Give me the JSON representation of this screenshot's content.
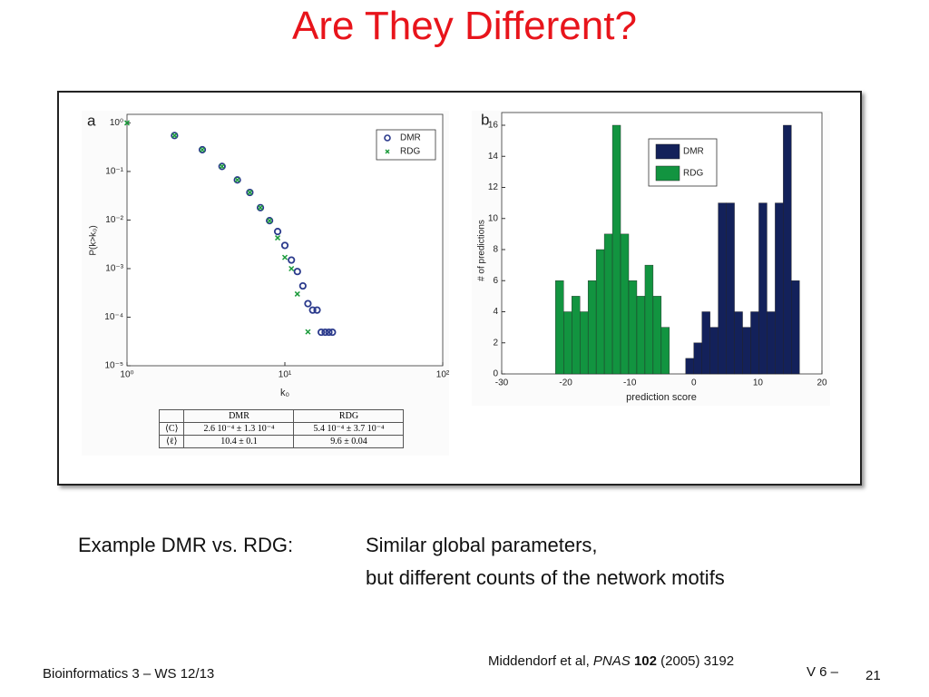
{
  "header": {
    "title": "Are They Different?"
  },
  "chart_data": [
    {
      "type": "scatter",
      "panel": "a",
      "x_label": "k₀",
      "y_label": "P(k>k₀)",
      "log_x": true,
      "log_y": true,
      "xlim": [
        1,
        100
      ],
      "ylim": [
        1e-05,
        1.5
      ],
      "xticks": [
        {
          "value": 1,
          "label": "10⁰"
        },
        {
          "value": 10,
          "label": "10¹"
        },
        {
          "value": 100,
          "label": "10²"
        }
      ],
      "yticks": [
        {
          "value": 1e-05,
          "label": "10⁻⁵"
        },
        {
          "value": 0.0001,
          "label": "10⁻⁴"
        },
        {
          "value": 0.001,
          "label": "10⁻³"
        },
        {
          "value": 0.01,
          "label": "10⁻²"
        },
        {
          "value": 0.1,
          "label": "10⁻¹"
        },
        {
          "value": 1,
          "label": "10⁰"
        }
      ],
      "legend": "upper right",
      "series": [
        {
          "name": "DMR",
          "color": "#2b3a8c",
          "marker": "circle",
          "x": [
            2,
            3,
            4,
            5,
            6,
            7,
            8,
            9,
            10,
            11,
            12,
            13,
            14,
            15,
            16,
            17,
            18,
            19,
            20
          ],
          "values": [
            0.55,
            0.28,
            0.127,
            0.067,
            0.037,
            0.018,
            0.0097,
            0.0058,
            0.003,
            0.0015,
            0.00087,
            0.00044,
            0.00019,
            0.00014,
            0.00014,
            4.9e-05,
            4.9e-05,
            4.9e-05,
            4.9e-05
          ]
        },
        {
          "name": "RDG",
          "color": "#1a9a3a",
          "marker": "x",
          "x": [
            1,
            2,
            3,
            4,
            5,
            6,
            7,
            8,
            9,
            10,
            11,
            12,
            14
          ],
          "values": [
            1,
            0.55,
            0.28,
            0.127,
            0.067,
            0.037,
            0.018,
            0.0097,
            0.0043,
            0.0017,
            0.001,
            0.0003,
            5e-05
          ]
        }
      ]
    },
    {
      "type": "histogram",
      "panel": "b",
      "x_label": "prediction score",
      "y_label": "# of predictions",
      "xlim": [
        -30,
        20
      ],
      "ylim": [
        0,
        16
      ],
      "xticks": [
        -30,
        -20,
        -10,
        0,
        10,
        20
      ],
      "yticks": [
        0,
        2,
        4,
        6,
        8,
        10,
        12,
        14,
        16
      ],
      "legend": "upper right",
      "bins": [
        -21.6,
        -20.33,
        -19.06,
        -17.79,
        -16.52,
        -15.25,
        -13.98,
        -12.71,
        -11.44,
        -10.17,
        -8.9,
        -7.63,
        -6.36,
        -5.09,
        -3.82,
        -2.55,
        -1.28,
        -0.01,
        1.26,
        2.53,
        3.8,
        5.07,
        6.34,
        7.61,
        8.88,
        10.15,
        11.42,
        12.69,
        13.96,
        15.23,
        16.5
      ],
      "series": [
        {
          "name": "DMR",
          "color": "#13215a",
          "values": [
            0,
            0,
            0,
            0,
            0,
            0,
            0,
            0,
            0,
            0,
            0,
            0,
            0,
            0,
            0,
            0,
            1,
            2,
            4,
            3,
            11,
            11,
            4,
            3,
            4,
            11,
            4,
            11,
            16,
            6
          ]
        },
        {
          "name": "RDG",
          "color": "#129440",
          "values": [
            6,
            4,
            5,
            4,
            6,
            8,
            9,
            16,
            9,
            6,
            5,
            7,
            5,
            3,
            0,
            0,
            0,
            0,
            0,
            0,
            0,
            0,
            0,
            0,
            0,
            0,
            0,
            0,
            0,
            0
          ]
        }
      ]
    }
  ],
  "table": {
    "header": [
      "DMR",
      "RDG"
    ],
    "rows": [
      [
        "⟨C⟩",
        "2.6 10⁻⁴ ± 1.3 10⁻⁴",
        "5.4 10⁻⁴ ± 3.7 10⁻⁴"
      ],
      [
        "⟨ℓ⟩",
        "10.4 ± 0.1",
        "9.6 ± 0.04"
      ]
    ]
  },
  "caption": {
    "lead": "Example DMR vs. RDG:",
    "line1": "Similar global parameters,",
    "line2": "but different counts of the network motifs"
  },
  "citation": {
    "authors": "Middendorf et al,",
    "journal": "PNAS",
    "volume": "102",
    "rest": "(2005) 3192"
  },
  "footer": {
    "course": "Bioinformatics 3 – WS 12/13",
    "lecture": "V 6 –",
    "page": "21"
  }
}
